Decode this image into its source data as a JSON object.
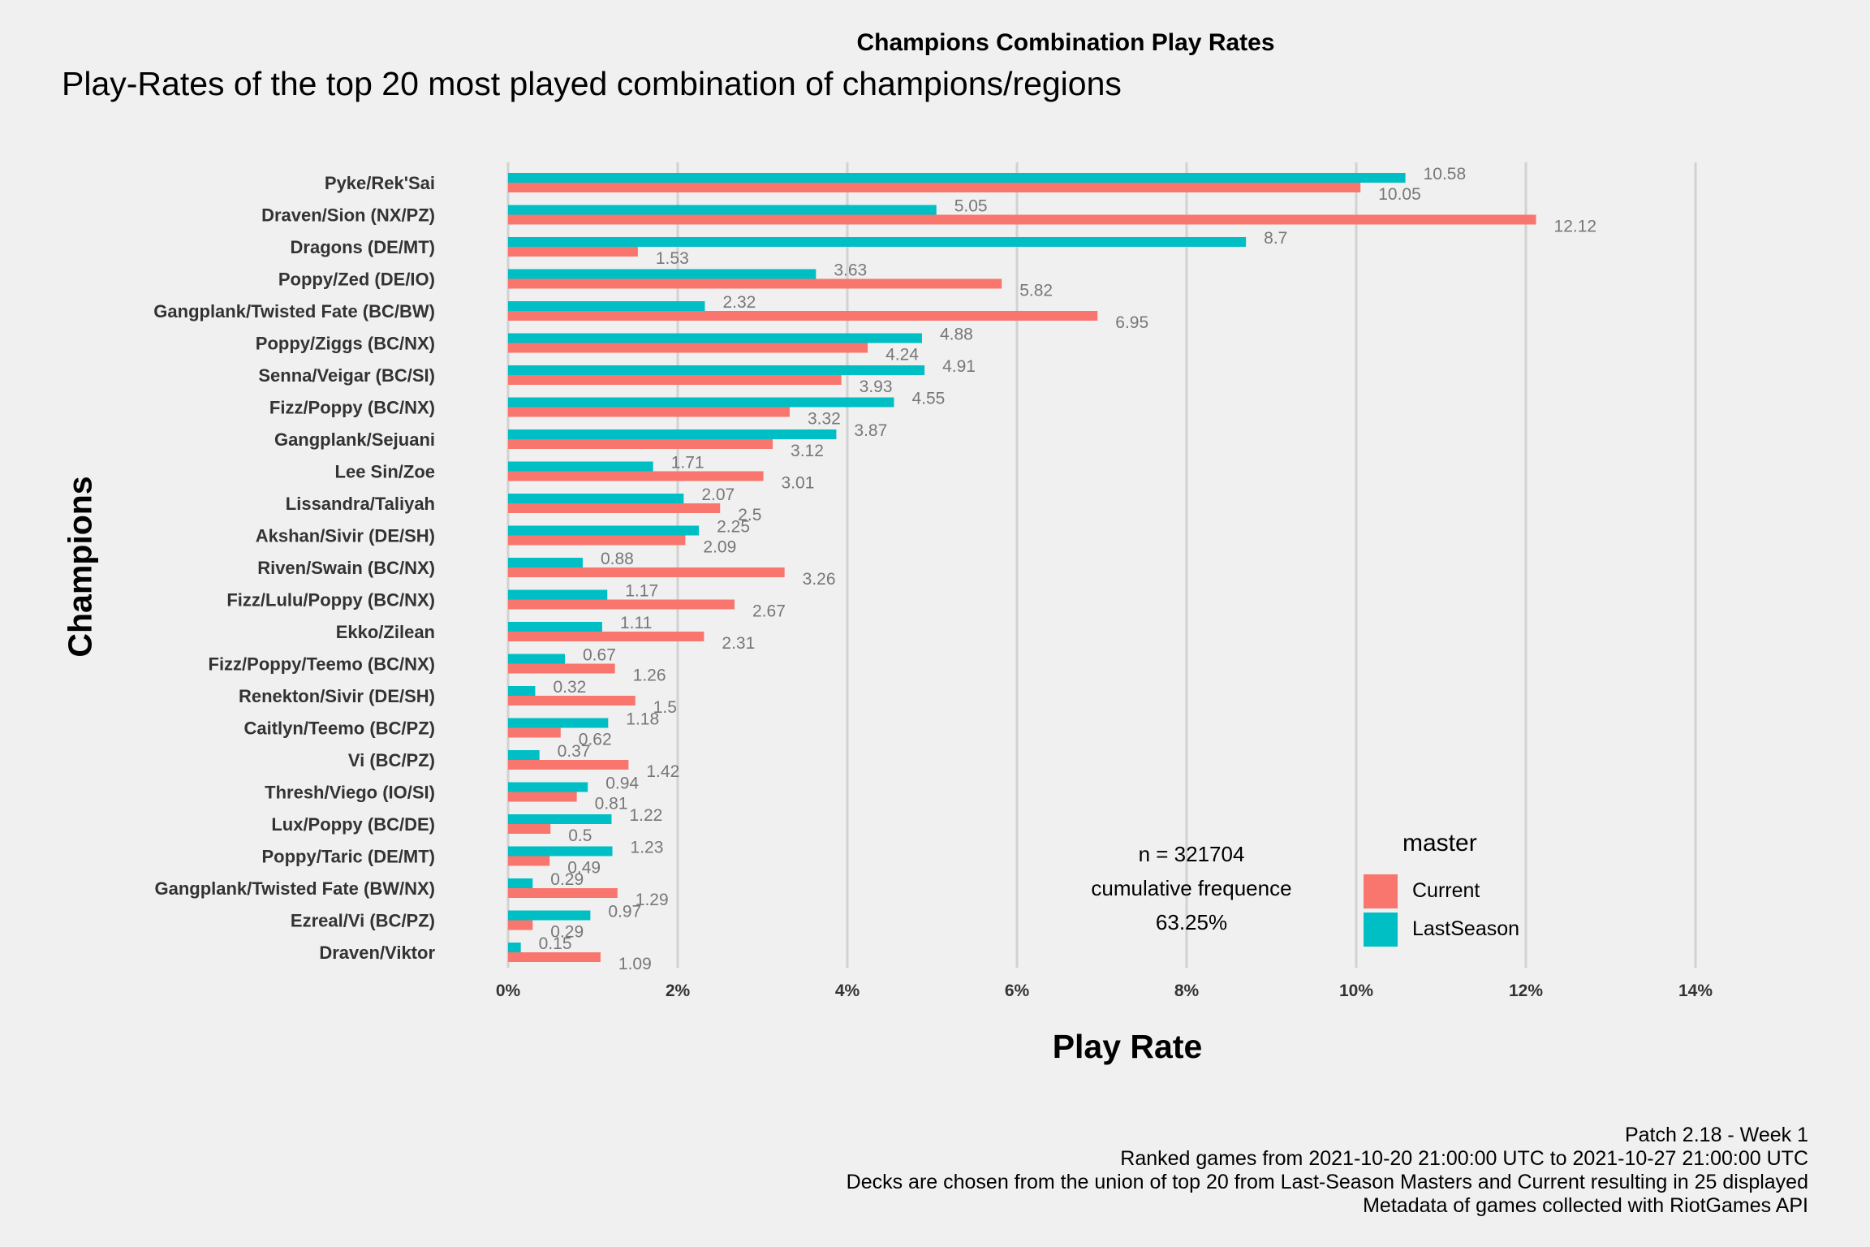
{
  "chart_data": {
    "type": "bar",
    "orientation": "horizontal",
    "title": "Champions Combination Play Rates",
    "subtitle": "Play-Rates of the top 20 most played combination of champions/regions",
    "xlabel": "Play Rate",
    "ylabel": "Champions",
    "xlim": [
      0,
      14
    ],
    "x_ticks": [
      "0%",
      "2%",
      "4%",
      "6%",
      "8%",
      "10%",
      "12%",
      "14%"
    ],
    "grid": "vertical major lines",
    "legend": {
      "title": "master",
      "placement": "bottom-right inside",
      "entries": [
        {
          "label": "Current",
          "color": "#f8766d"
        },
        {
          "label": "LastSeason",
          "color": "#00bfc4"
        }
      ]
    },
    "categories": [
      "Pyke/Rek'Sai",
      "Draven/Sion (NX/PZ)",
      "Dragons (DE/MT)",
      "Poppy/Zed (DE/IO)",
      "Gangplank/Twisted Fate (BC/BW)",
      "Poppy/Ziggs (BC/NX)",
      "Senna/Veigar (BC/SI)",
      "Fizz/Poppy (BC/NX)",
      "Gangplank/Sejuani",
      "Lee Sin/Zoe",
      "Lissandra/Taliyah",
      "Akshan/Sivir (DE/SH)",
      "Riven/Swain (BC/NX)",
      "Fizz/Lulu/Poppy (BC/NX)",
      "Ekko/Zilean",
      "Fizz/Poppy/Teemo (BC/NX)",
      "Renekton/Sivir (DE/SH)",
      "Caitlyn/Teemo (BC/PZ)",
      "Vi (BC/PZ)",
      "Thresh/Viego (IO/SI)",
      "Lux/Poppy (BC/DE)",
      "Poppy/Taric (DE/MT)",
      "Gangplank/Twisted Fate (BW/NX)",
      "Ezreal/Vi (BC/PZ)",
      "Draven/Viktor"
    ],
    "series": [
      {
        "name": "LastSeason",
        "color": "#00bfc4",
        "values": [
          10.58,
          5.05,
          8.7,
          3.63,
          2.32,
          4.88,
          4.91,
          4.55,
          3.87,
          1.71,
          2.07,
          2.25,
          0.88,
          1.17,
          1.11,
          0.67,
          0.32,
          1.18,
          0.37,
          0.94,
          1.22,
          1.23,
          0.29,
          0.97,
          0.15
        ]
      },
      {
        "name": "Current",
        "color": "#f8766d",
        "values": [
          10.05,
          12.12,
          1.53,
          5.82,
          6.95,
          4.24,
          3.93,
          3.32,
          3.12,
          3.01,
          2.5,
          2.09,
          3.26,
          2.67,
          2.31,
          1.26,
          1.5,
          0.62,
          1.42,
          0.81,
          0.5,
          0.49,
          1.29,
          0.29,
          1.09
        ]
      }
    ]
  },
  "annotation": {
    "n_line": "n = 321704",
    "cum_label": "cumulative frequence",
    "cum_value": "63.25%"
  },
  "footer": {
    "line1": "Patch 2.18 - Week 1",
    "line2": "Ranked games from 2021-10-20 21:00:00 UTC to 2021-10-27 21:00:00 UTC",
    "line3": "Decks are chosen from the union of top 20 from Last-Season Masters and Current resulting in 25 displayed",
    "line4": "Metadata of games collected with RiotGames API"
  }
}
